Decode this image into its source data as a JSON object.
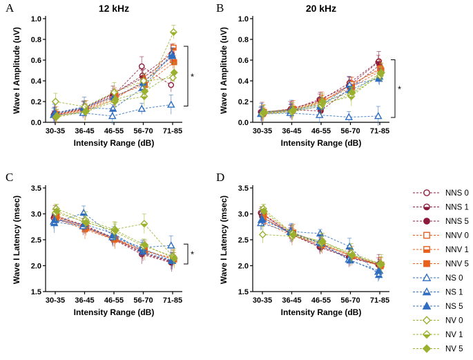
{
  "chart_data": [
    {
      "panel": "A",
      "type": "line",
      "title": "12 kHz",
      "xlabel": "Intensity Range (dB)",
      "ylabel": "Wave I Amplitude (uV)",
      "categories": [
        "30-35",
        "36-45",
        "46-55",
        "56-70",
        "71-85"
      ],
      "ylim": [
        0,
        1.0
      ],
      "yticks": [
        "0.0",
        "0.2",
        "0.4",
        "0.6",
        "0.8",
        "1.0"
      ],
      "annotation": "*",
      "series": [
        {
          "name": "NNS 0",
          "values": [
            0.07,
            0.12,
            0.25,
            0.54,
            0.36
          ]
        },
        {
          "name": "NNS 1",
          "values": [
            0.08,
            0.13,
            0.27,
            0.45,
            0.66
          ]
        },
        {
          "name": "NNS 5",
          "values": [
            0.09,
            0.14,
            0.28,
            0.43,
            0.63
          ]
        },
        {
          "name": "NNV 0",
          "values": [
            0.06,
            0.11,
            0.22,
            0.4,
            0.6
          ]
        },
        {
          "name": "NNV 1",
          "values": [
            0.07,
            0.12,
            0.24,
            0.38,
            0.72
          ]
        },
        {
          "name": "NNV 5",
          "values": [
            0.08,
            0.13,
            0.26,
            0.36,
            0.58
          ]
        },
        {
          "name": "NS 0",
          "values": [
            0.07,
            0.09,
            0.06,
            0.13,
            0.17
          ]
        },
        {
          "name": "NS 1",
          "values": [
            0.08,
            0.14,
            0.13,
            0.33,
            0.66
          ]
        },
        {
          "name": "NS 5",
          "values": [
            0.09,
            0.15,
            0.24,
            0.38,
            0.64
          ]
        },
        {
          "name": "NV 0",
          "values": [
            0.2,
            0.15,
            0.29,
            0.4,
            0.43
          ]
        },
        {
          "name": "NV 1",
          "values": [
            0.05,
            0.1,
            0.2,
            0.25,
            0.87
          ]
        },
        {
          "name": "NV 5",
          "values": [
            0.06,
            0.11,
            0.22,
            0.3,
            0.48
          ]
        }
      ]
    },
    {
      "panel": "B",
      "type": "line",
      "title": "20 kHz",
      "xlabel": "Intensity Range (dB)",
      "ylabel": "Wave I Amplitude (uV)",
      "categories": [
        "30-35",
        "36-45",
        "46-55",
        "56-70",
        "71-85"
      ],
      "ylim": [
        0,
        1.0
      ],
      "yticks": [
        "0.0",
        "0.2",
        "0.4",
        "0.6",
        "0.8",
        "1.0"
      ],
      "annotation": "*",
      "series": [
        {
          "name": "NNS 0",
          "values": [
            0.1,
            0.12,
            0.22,
            0.35,
            0.58
          ]
        },
        {
          "name": "NNS 1",
          "values": [
            0.09,
            0.13,
            0.21,
            0.38,
            0.59
          ]
        },
        {
          "name": "NNS 5",
          "values": [
            0.1,
            0.12,
            0.11,
            0.33,
            0.55
          ]
        },
        {
          "name": "NNV 0",
          "values": [
            0.08,
            0.11,
            0.19,
            0.36,
            0.52
          ]
        },
        {
          "name": "NNV 1",
          "values": [
            0.09,
            0.12,
            0.2,
            0.37,
            0.51
          ]
        },
        {
          "name": "NNV 5",
          "values": [
            0.1,
            0.13,
            0.21,
            0.34,
            0.5
          ]
        },
        {
          "name": "NS 0",
          "values": [
            0.08,
            0.09,
            0.07,
            0.05,
            0.06
          ]
        },
        {
          "name": "NS 1",
          "values": [
            0.09,
            0.11,
            0.15,
            0.36,
            0.42
          ]
        },
        {
          "name": "NS 5",
          "values": [
            0.1,
            0.12,
            0.17,
            0.31,
            0.44
          ]
        },
        {
          "name": "NV 0",
          "values": [
            0.08,
            0.1,
            0.16,
            0.27,
            0.45
          ]
        },
        {
          "name": "NV 1",
          "values": [
            0.09,
            0.11,
            0.18,
            0.25,
            0.47
          ]
        },
        {
          "name": "NV 5",
          "values": [
            0.1,
            0.12,
            0.2,
            0.29,
            0.48
          ]
        }
      ]
    },
    {
      "panel": "C",
      "type": "line",
      "title": "",
      "xlabel": "Intensity Range (dB)",
      "ylabel": "Wave I Latency (msec)",
      "categories": [
        "30-35",
        "36-45",
        "46-55",
        "56-70",
        "71-85"
      ],
      "ylim": [
        1.5,
        3.5
      ],
      "yticks": [
        "1.5",
        "2.0",
        "2.5",
        "3.0",
        "3.5"
      ],
      "annotation": "*",
      "series": [
        {
          "name": "NNS 0",
          "values": [
            2.92,
            2.75,
            2.52,
            2.22,
            2.06
          ]
        },
        {
          "name": "NNS 1",
          "values": [
            2.95,
            2.77,
            2.53,
            2.24,
            2.07
          ]
        },
        {
          "name": "NNS 5",
          "values": [
            2.97,
            2.78,
            2.54,
            2.25,
            2.08
          ]
        },
        {
          "name": "NNV 0",
          "values": [
            2.9,
            2.7,
            2.5,
            2.28,
            2.15
          ]
        },
        {
          "name": "NNV 1",
          "values": [
            2.93,
            2.72,
            2.51,
            2.3,
            2.13
          ]
        },
        {
          "name": "NNV 5",
          "values": [
            2.96,
            2.74,
            2.52,
            2.29,
            2.12
          ]
        },
        {
          "name": "NS 0",
          "values": [
            2.85,
            2.76,
            2.55,
            2.35,
            2.39
          ]
        },
        {
          "name": "NS 1",
          "values": [
            2.82,
            3.02,
            2.58,
            2.33,
            2.1
          ]
        },
        {
          "name": "NS 5",
          "values": [
            2.88,
            2.8,
            2.62,
            2.27,
            2.09
          ]
        },
        {
          "name": "NV 0",
          "values": [
            3.02,
            2.85,
            2.66,
            2.38,
            2.18
          ]
        },
        {
          "name": "NV 1",
          "values": [
            3.1,
            2.88,
            2.7,
            2.81,
            2.16
          ]
        },
        {
          "name": "NV 5",
          "values": [
            3.05,
            2.83,
            2.68,
            2.4,
            2.14
          ]
        }
      ]
    },
    {
      "panel": "D",
      "type": "line",
      "title": "",
      "xlabel": "Intensity Range (dB)",
      "ylabel": "Wave I Latency (msec)",
      "categories": [
        "30-35",
        "36-45",
        "46-55",
        "56-70",
        "71-85"
      ],
      "ylim": [
        1.5,
        3.5
      ],
      "yticks": [
        "1.5",
        "2.0",
        "2.5",
        "3.0",
        "3.5"
      ],
      "annotation": "",
      "series": [
        {
          "name": "NNS 0",
          "values": [
            3.02,
            2.62,
            2.36,
            2.16,
            2.02
          ]
        },
        {
          "name": "NNS 1",
          "values": [
            3.0,
            2.63,
            2.38,
            2.17,
            2.03
          ]
        },
        {
          "name": "NNS 5",
          "values": [
            2.95,
            2.6,
            2.35,
            2.15,
            2.01
          ]
        },
        {
          "name": "NNV 0",
          "values": [
            2.85,
            2.58,
            2.4,
            2.2,
            2.0
          ]
        },
        {
          "name": "NNV 1",
          "values": [
            2.92,
            2.61,
            2.42,
            2.18,
            1.99
          ]
        },
        {
          "name": "NNV 5",
          "values": [
            2.98,
            2.64,
            2.41,
            2.19,
            2.02
          ]
        },
        {
          "name": "NS 0",
          "values": [
            2.82,
            2.65,
            2.45,
            2.12,
            1.88
          ]
        },
        {
          "name": "NS 1",
          "values": [
            2.88,
            2.66,
            2.62,
            2.37,
            1.82
          ]
        },
        {
          "name": "NS 5",
          "values": [
            2.9,
            2.63,
            2.43,
            2.1,
            1.9
          ]
        },
        {
          "name": "NV 0",
          "values": [
            2.6,
            2.57,
            2.44,
            2.22,
            2.02
          ]
        },
        {
          "name": "NV 1",
          "values": [
            3.1,
            2.62,
            2.46,
            2.24,
            2.04
          ]
        },
        {
          "name": "NV 5",
          "values": [
            3.05,
            2.59,
            2.47,
            2.2,
            2.03
          ]
        }
      ]
    }
  ],
  "legend": [
    {
      "name": "NNS 0",
      "color": "#8b1a3a",
      "marker": "circle",
      "fill": "open"
    },
    {
      "name": "NNS 1",
      "color": "#8b1a3a",
      "marker": "circle",
      "fill": "half"
    },
    {
      "name": "NNS 5",
      "color": "#8b1a3a",
      "marker": "circle",
      "fill": "full"
    },
    {
      "name": "NNV 0",
      "color": "#e8601c",
      "marker": "square",
      "fill": "open"
    },
    {
      "name": "NNV 1",
      "color": "#e8601c",
      "marker": "square",
      "fill": "half"
    },
    {
      "name": "NNV 5",
      "color": "#e8601c",
      "marker": "square",
      "fill": "full"
    },
    {
      "name": "NS 0",
      "color": "#2e6dbf",
      "marker": "triangle",
      "fill": "open"
    },
    {
      "name": "NS 1",
      "color": "#2e6dbf",
      "marker": "triangle",
      "fill": "half"
    },
    {
      "name": "NS 5",
      "color": "#2e6dbf",
      "marker": "triangle",
      "fill": "full"
    },
    {
      "name": "NV 0",
      "color": "#9cb02f",
      "marker": "diamond",
      "fill": "open"
    },
    {
      "name": "NV 1",
      "color": "#9cb02f",
      "marker": "diamond",
      "fill": "half"
    },
    {
      "name": "NV 5",
      "color": "#9cb02f",
      "marker": "diamond",
      "fill": "full"
    }
  ]
}
